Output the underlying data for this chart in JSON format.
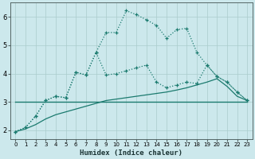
{
  "xlabel": "Humidex (Indice chaleur)",
  "xlim": [
    -0.5,
    23.5
  ],
  "ylim": [
    1.7,
    6.5
  ],
  "yticks": [
    2,
    3,
    4,
    5,
    6
  ],
  "xticks": [
    0,
    1,
    2,
    3,
    4,
    5,
    6,
    7,
    8,
    9,
    10,
    11,
    12,
    13,
    14,
    15,
    16,
    17,
    18,
    19,
    20,
    21,
    22,
    23
  ],
  "bg_color": "#cce8ec",
  "grid_color": "#aacccc",
  "line_color": "#1a7a6e",
  "series1_x": [
    0,
    1,
    2,
    3,
    4,
    5,
    6,
    7,
    8,
    9,
    10,
    11,
    12,
    13,
    14,
    15,
    16,
    17,
    18,
    19,
    20,
    21,
    22,
    23
  ],
  "series1_y": [
    1.95,
    2.1,
    2.5,
    3.05,
    3.2,
    3.15,
    4.05,
    3.95,
    4.75,
    5.45,
    5.45,
    6.22,
    6.08,
    5.9,
    5.7,
    5.25,
    5.55,
    5.6,
    4.75,
    4.3,
    3.9,
    3.7,
    3.35,
    3.05
  ],
  "series2_x": [
    0,
    1,
    2,
    3,
    4,
    5,
    6,
    7,
    8,
    9,
    10,
    11,
    12,
    13,
    14,
    15,
    16,
    17,
    18,
    19,
    20,
    21,
    22,
    23
  ],
  "series2_y": [
    1.95,
    2.1,
    2.5,
    3.05,
    3.2,
    3.15,
    4.05,
    3.95,
    4.75,
    3.95,
    4.0,
    4.1,
    4.2,
    4.3,
    3.7,
    3.5,
    3.6,
    3.7,
    3.65,
    4.3,
    3.9,
    3.7,
    3.35,
    3.05
  ],
  "series3_x": [
    0,
    23
  ],
  "series3_y": [
    3.0,
    3.0
  ],
  "series4_x": [
    0,
    1,
    2,
    3,
    4,
    5,
    6,
    7,
    8,
    9,
    10,
    11,
    12,
    13,
    14,
    15,
    16,
    17,
    18,
    19,
    20,
    21,
    22,
    23
  ],
  "series4_y": [
    1.95,
    2.05,
    2.2,
    2.4,
    2.55,
    2.65,
    2.75,
    2.85,
    2.95,
    3.05,
    3.1,
    3.15,
    3.2,
    3.25,
    3.3,
    3.35,
    3.42,
    3.5,
    3.6,
    3.7,
    3.82,
    3.55,
    3.2,
    3.05
  ]
}
